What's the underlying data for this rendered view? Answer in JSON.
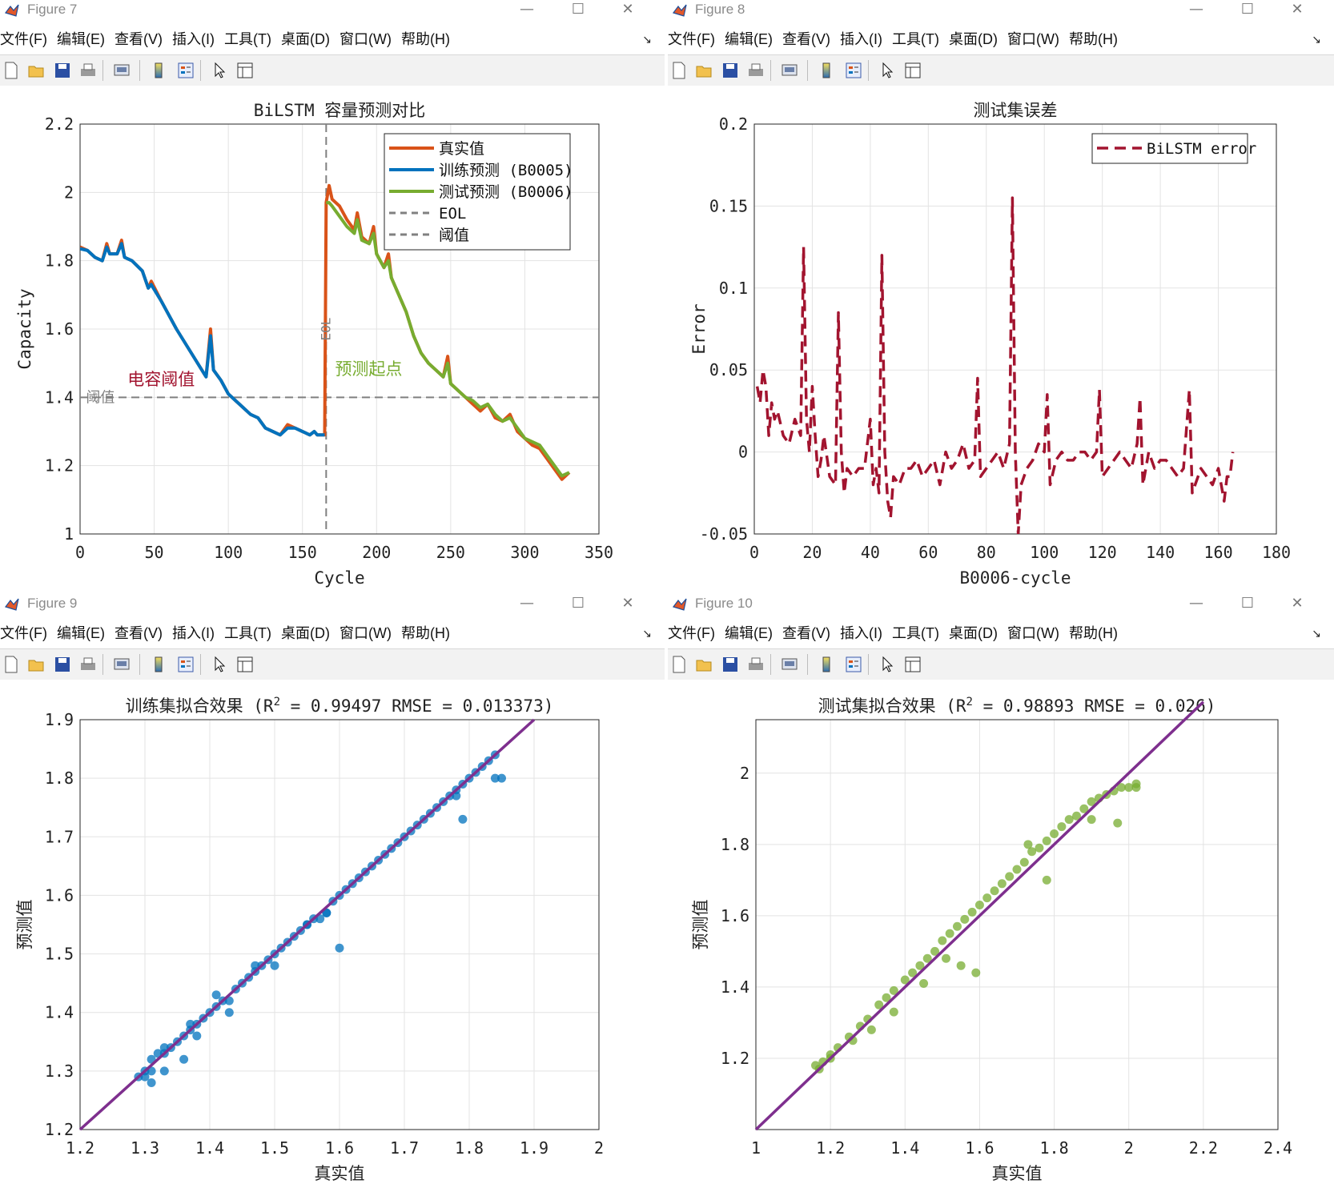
{
  "menu": [
    "文件(F)",
    "编辑(E)",
    "查看(V)",
    "插入(I)",
    "工具(T)",
    "桌面(D)",
    "窗口(W)",
    "帮助(H)"
  ],
  "window_buttons": {
    "minimize": "—",
    "maximize": "☐",
    "close": "✕"
  },
  "toolbar_icons": [
    "new-figure-icon",
    "open-file-icon",
    "save-icon",
    "print-icon",
    "link-plot-icon",
    "insert-colorbar-icon",
    "insert-legend-icon",
    "edit-plot-arrow-icon",
    "property-inspector-icon"
  ],
  "colors": {
    "real": "#d95319",
    "train": "#0072bd",
    "test": "#77ac30",
    "error": "#a2142f",
    "fit": "#7e2f8e",
    "threshold": "#808080"
  },
  "windows": [
    {
      "title": "Figure 7",
      "chart_data": {
        "type": "line",
        "title": "BiLSTM 容量预测对比",
        "xlabel": "Cycle",
        "ylabel": "Capacity",
        "xlim": [
          0,
          350
        ],
        "ylim": [
          1,
          2.2
        ],
        "xticks": [
          "0",
          "50",
          "100",
          "150",
          "200",
          "250",
          "300",
          "350"
        ],
        "yticks": [
          "1",
          "1.2",
          "1.4",
          "1.6",
          "1.8",
          "2",
          "2.2"
        ],
        "grid": true,
        "legend_position": "top-right",
        "legend": [
          "真实值",
          "训练预测 (B0005)",
          "测试预测 (B0006)",
          "EOL",
          "阈值"
        ],
        "series": [
          {
            "name": "真实值",
            "x": [
              0,
              5,
              10,
              15,
              18,
              20,
              25,
              28,
              30,
              35,
              42,
              46,
              48,
              55,
              65,
              75,
              85,
              88,
              90,
              95,
              100,
              105,
              110,
              115,
              120,
              125,
              130,
              135,
              140,
              145,
              150,
              155,
              158,
              160,
              165,
              166,
              168,
              170,
              175,
              180,
              185,
              187,
              190,
              195,
              198,
              200,
              205,
              208,
              210,
              215,
              220,
              225,
              230,
              235,
              240,
              245,
              248,
              250,
              255,
              260,
              265,
              270,
              275,
              280,
              285,
              290,
              295,
              300,
              305,
              310,
              315,
              320,
              325,
              330
            ],
            "y": [
              1.84,
              1.83,
              1.81,
              1.8,
              1.85,
              1.82,
              1.82,
              1.86,
              1.81,
              1.8,
              1.77,
              1.72,
              1.74,
              1.68,
              1.6,
              1.53,
              1.46,
              1.6,
              1.48,
              1.45,
              1.41,
              1.39,
              1.37,
              1.35,
              1.34,
              1.31,
              1.3,
              1.29,
              1.32,
              1.31,
              1.3,
              1.29,
              1.3,
              1.29,
              1.29,
              1.97,
              2.02,
              1.98,
              1.96,
              1.92,
              1.89,
              1.94,
              1.87,
              1.85,
              1.9,
              1.82,
              1.78,
              1.82,
              1.75,
              1.7,
              1.65,
              1.58,
              1.53,
              1.5,
              1.48,
              1.46,
              1.52,
              1.44,
              1.42,
              1.4,
              1.38,
              1.36,
              1.38,
              1.34,
              1.33,
              1.35,
              1.3,
              1.28,
              1.26,
              1.25,
              1.22,
              1.19,
              1.16,
              1.18
            ]
          },
          {
            "name": "训练预测 (B0005)",
            "x": [
              0,
              5,
              10,
              15,
              18,
              20,
              25,
              28,
              30,
              35,
              42,
              46,
              48,
              55,
              65,
              75,
              85,
              88,
              90,
              95,
              100,
              105,
              110,
              115,
              120,
              125,
              130,
              135,
              140,
              145,
              150,
              155,
              158,
              160,
              165
            ],
            "y": [
              1.835,
              1.83,
              1.81,
              1.8,
              1.84,
              1.82,
              1.82,
              1.85,
              1.81,
              1.8,
              1.77,
              1.72,
              1.73,
              1.68,
              1.6,
              1.53,
              1.46,
              1.58,
              1.48,
              1.45,
              1.41,
              1.39,
              1.37,
              1.35,
              1.34,
              1.31,
              1.3,
              1.29,
              1.31,
              1.31,
              1.3,
              1.29,
              1.3,
              1.29,
              1.29
            ]
          },
          {
            "name": "测试预测 (B0006)",
            "x": [
              166,
              168,
              170,
              175,
              180,
              185,
              187,
              190,
              195,
              198,
              200,
              205,
              208,
              210,
              215,
              220,
              225,
              230,
              235,
              240,
              245,
              248,
              250,
              255,
              260,
              265,
              270,
              275,
              280,
              285,
              290,
              295,
              300,
              305,
              310,
              315,
              320,
              325,
              330
            ],
            "y": [
              1.97,
              1.97,
              1.96,
              1.93,
              1.9,
              1.88,
              1.92,
              1.86,
              1.85,
              1.88,
              1.82,
              1.78,
              1.8,
              1.75,
              1.7,
              1.65,
              1.58,
              1.53,
              1.5,
              1.48,
              1.46,
              1.5,
              1.44,
              1.42,
              1.4,
              1.39,
              1.37,
              1.38,
              1.35,
              1.33,
              1.34,
              1.31,
              1.28,
              1.27,
              1.26,
              1.23,
              1.2,
              1.17,
              1.18
            ]
          }
        ],
        "eol_x": 166,
        "threshold_y": 1.4,
        "annotations": [
          {
            "text": "阈值",
            "x": 4,
            "y": 1.4
          },
          {
            "text": "电容阈值",
            "x": 32,
            "y": 1.45
          },
          {
            "text": "预测起点",
            "x": 172,
            "y": 1.48
          },
          {
            "text": "EOL",
            "x": 166,
            "y": 1.6
          }
        ]
      }
    },
    {
      "title": "Figure 8",
      "chart_data": {
        "type": "line",
        "title": "测试集误差",
        "xlabel": "B0006-cycle",
        "ylabel": "Error",
        "xlim": [
          0,
          180
        ],
        "ylim": [
          -0.05,
          0.2
        ],
        "xticks": [
          "0",
          "20",
          "40",
          "60",
          "80",
          "100",
          "120",
          "140",
          "160",
          "180"
        ],
        "yticks": [
          "-0.05",
          "0",
          "0.05",
          "0.1",
          "0.15",
          "0.2"
        ],
        "grid": true,
        "legend_position": "top-right",
        "legend": [
          "BiLSTM error"
        ],
        "series": [
          {
            "name": "BiLSTM error",
            "x": [
              1,
              2,
              3,
              4,
              5,
              6,
              7,
              8,
              10,
              12,
              14,
              16,
              17,
              18,
              19,
              20,
              21,
              22,
              23,
              24,
              26,
              28,
              29,
              30,
              31,
              32,
              34,
              36,
              38,
              40,
              41,
              42,
              43,
              44,
              45,
              46,
              47,
              48,
              50,
              52,
              54,
              56,
              58,
              60,
              62,
              64,
              66,
              68,
              70,
              72,
              74,
              76,
              77,
              78,
              80,
              82,
              84,
              86,
              88,
              89,
              90,
              91,
              92,
              94,
              96,
              98,
              100,
              101,
              102,
              104,
              106,
              108,
              110,
              112,
              114,
              116,
              118,
              119,
              120,
              122,
              124,
              126,
              128,
              130,
              132,
              133,
              134,
              136,
              138,
              140,
              142,
              144,
              146,
              148,
              150,
              151,
              152,
              154,
              156,
              158,
              160,
              162,
              163,
              164,
              165
            ],
            "y": [
              0.04,
              0.03,
              0.05,
              0.04,
              0.01,
              0.03,
              0.02,
              0.025,
              0.01,
              0.005,
              0.02,
              0.01,
              0.125,
              0.02,
              0.0,
              0.04,
              0.01,
              -0.015,
              -0.005,
              0.01,
              -0.015,
              -0.02,
              0.085,
              0.0,
              -0.025,
              -0.01,
              -0.015,
              -0.01,
              -0.01,
              0.02,
              -0.02,
              -0.01,
              -0.025,
              0.12,
              0.0,
              -0.03,
              -0.04,
              -0.015,
              -0.02,
              -0.01,
              -0.01,
              -0.005,
              -0.015,
              -0.01,
              -0.005,
              -0.02,
              0.0,
              -0.01,
              -0.005,
              0.005,
              -0.01,
              -0.005,
              0.045,
              -0.015,
              -0.01,
              -0.005,
              0.0,
              -0.01,
              0.005,
              0.155,
              0.0,
              -0.05,
              -0.02,
              -0.01,
              -0.005,
              0.005,
              0.0,
              0.035,
              -0.02,
              -0.005,
              0.0,
              -0.005,
              -0.005,
              0.0,
              0.0,
              -0.005,
              0.0,
              0.038,
              -0.015,
              -0.01,
              -0.005,
              0.0,
              -0.005,
              -0.01,
              0.005,
              0.033,
              -0.02,
              0.0,
              -0.01,
              -0.005,
              -0.005,
              -0.01,
              -0.015,
              -0.01,
              0.038,
              -0.025,
              -0.02,
              -0.01,
              -0.015,
              -0.02,
              -0.01,
              -0.03,
              -0.015,
              -0.015,
              0.0
            ]
          }
        ]
      }
    },
    {
      "title": "Figure 9",
      "chart_data": {
        "type": "scatter",
        "title": "训练集拟合效果 (R² = 0.99497 RMSE = 0.013373)",
        "title_parts": {
          "pre": "训练集拟合效果 (R",
          "sup": "2",
          "post": " = 0.99497 RMSE = 0.013373)"
        },
        "xlabel": "真实值",
        "ylabel": "预测值",
        "xlim": [
          1.2,
          2.0
        ],
        "ylim": [
          1.2,
          1.9
        ],
        "xticks": [
          "1.2",
          "1.3",
          "1.4",
          "1.5",
          "1.6",
          "1.7",
          "1.8",
          "1.9",
          "2"
        ],
        "yticks": [
          "1.2",
          "1.3",
          "1.4",
          "1.5",
          "1.6",
          "1.7",
          "1.8",
          "1.9"
        ],
        "grid": true,
        "fit_line": [
          [
            1.2,
            1.2
          ],
          [
            1.9,
            1.9
          ]
        ],
        "points": {
          "x": [
            1.29,
            1.3,
            1.31,
            1.31,
            1.32,
            1.33,
            1.33,
            1.34,
            1.35,
            1.36,
            1.37,
            1.37,
            1.38,
            1.39,
            1.4,
            1.41,
            1.42,
            1.43,
            1.44,
            1.45,
            1.46,
            1.47,
            1.48,
            1.49,
            1.5,
            1.51,
            1.52,
            1.53,
            1.54,
            1.55,
            1.56,
            1.57,
            1.58,
            1.59,
            1.6,
            1.61,
            1.62,
            1.63,
            1.64,
            1.65,
            1.66,
            1.67,
            1.68,
            1.69,
            1.7,
            1.71,
            1.72,
            1.73,
            1.74,
            1.75,
            1.76,
            1.77,
            1.78,
            1.79,
            1.8,
            1.81,
            1.82,
            1.83,
            1.84,
            1.3,
            1.31,
            1.33,
            1.36,
            1.38,
            1.41,
            1.43,
            1.47,
            1.5,
            1.55,
            1.58,
            1.6,
            1.79,
            1.85,
            1.84,
            1.78
          ],
          "y": [
            1.29,
            1.3,
            1.3,
            1.32,
            1.33,
            1.33,
            1.34,
            1.34,
            1.35,
            1.36,
            1.37,
            1.38,
            1.38,
            1.39,
            1.4,
            1.41,
            1.42,
            1.42,
            1.44,
            1.45,
            1.46,
            1.48,
            1.48,
            1.49,
            1.5,
            1.51,
            1.52,
            1.53,
            1.54,
            1.55,
            1.56,
            1.56,
            1.57,
            1.59,
            1.6,
            1.61,
            1.62,
            1.63,
            1.64,
            1.65,
            1.66,
            1.67,
            1.68,
            1.69,
            1.7,
            1.71,
            1.72,
            1.73,
            1.74,
            1.75,
            1.76,
            1.77,
            1.78,
            1.79,
            1.8,
            1.81,
            1.82,
            1.83,
            1.84,
            1.29,
            1.28,
            1.3,
            1.32,
            1.36,
            1.43,
            1.4,
            1.47,
            1.48,
            1.55,
            1.57,
            1.51,
            1.73,
            1.8,
            1.8,
            1.77
          ]
        }
      }
    },
    {
      "title": "Figure 10",
      "chart_data": {
        "type": "scatter",
        "title": "测试集拟合效果 (R² = 0.98893 RMSE = 0.026)",
        "title_parts": {
          "pre": "测试集拟合效果 (R",
          "sup": "2",
          "post": " = 0.98893 RMSE = 0.026)"
        },
        "xlabel": "真实值",
        "ylabel": "预测值",
        "xlim": [
          1.0,
          2.4
        ],
        "ylim": [
          1.0,
          2.15
        ],
        "xticks": [
          "1",
          "1.2",
          "1.4",
          "1.6",
          "1.8",
          "2",
          "2.2",
          "2.4"
        ],
        "yticks": [
          "1.2",
          "1.4",
          "1.6",
          "1.8",
          "2"
        ],
        "grid": true,
        "fit_line": [
          [
            1.0,
            1.0
          ],
          [
            2.2,
            2.2
          ]
        ],
        "points": {
          "x": [
            1.16,
            1.18,
            1.2,
            1.22,
            1.25,
            1.28,
            1.3,
            1.33,
            1.35,
            1.37,
            1.4,
            1.42,
            1.44,
            1.46,
            1.48,
            1.5,
            1.52,
            1.54,
            1.56,
            1.58,
            1.6,
            1.62,
            1.64,
            1.66,
            1.68,
            1.7,
            1.72,
            1.74,
            1.76,
            1.78,
            1.8,
            1.82,
            1.84,
            1.86,
            1.88,
            1.9,
            1.92,
            1.94,
            1.96,
            1.98,
            2.0,
            2.02,
            1.2,
            1.26,
            1.31,
            1.37,
            1.45,
            1.51,
            1.55,
            1.59,
            1.73,
            1.78,
            1.9,
            1.97,
            2.02,
            1.17
          ],
          "y": [
            1.18,
            1.19,
            1.21,
            1.23,
            1.26,
            1.29,
            1.31,
            1.35,
            1.37,
            1.39,
            1.42,
            1.44,
            1.46,
            1.48,
            1.5,
            1.53,
            1.55,
            1.57,
            1.59,
            1.61,
            1.63,
            1.65,
            1.67,
            1.69,
            1.71,
            1.73,
            1.75,
            1.78,
            1.79,
            1.81,
            1.83,
            1.85,
            1.87,
            1.88,
            1.9,
            1.92,
            1.93,
            1.94,
            1.95,
            1.96,
            1.96,
            1.97,
            1.2,
            1.25,
            1.28,
            1.33,
            1.41,
            1.48,
            1.46,
            1.44,
            1.8,
            1.7,
            1.87,
            1.86,
            1.96,
            1.17
          ]
        }
      }
    }
  ]
}
